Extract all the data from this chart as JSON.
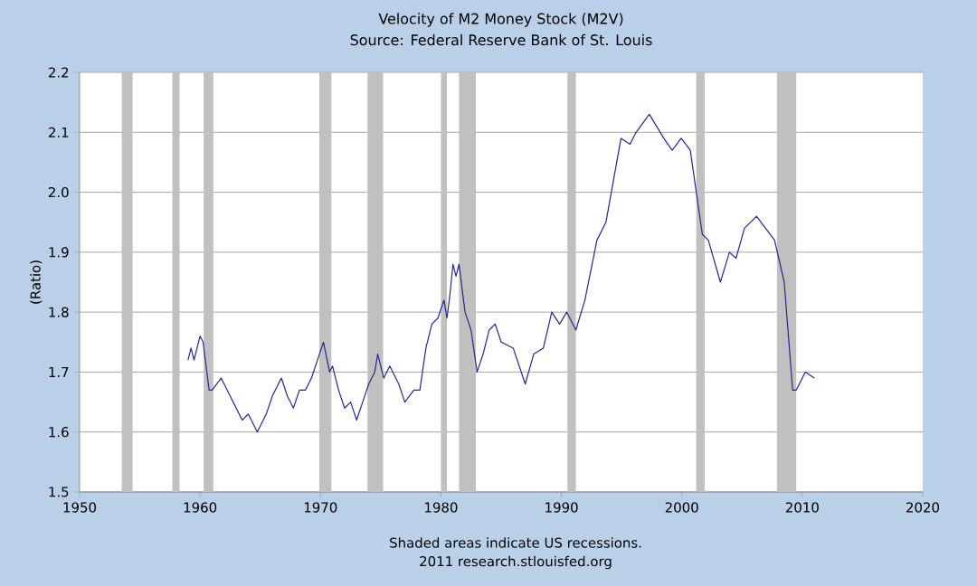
{
  "chart_data": {
    "type": "line",
    "title": "Velocity of M2 Money Stock (M2V)",
    "subtitle": "Source: Federal Reserve Bank of St. Louis",
    "ylabel": "(Ratio)",
    "annotations": [
      "Shaded areas indicate US recessions.",
      "2011 research.stlouisfed.org"
    ],
    "xlim": [
      1950,
      2020
    ],
    "xticks": [
      1950,
      1960,
      1970,
      1980,
      1990,
      2000,
      2010,
      2020
    ],
    "ylim": [
      1.5,
      2.2
    ],
    "yticks": [
      1.5,
      1.6,
      1.7,
      1.8,
      1.9,
      {
        "value": 2.0,
        "label": "2.0"
      },
      2.1,
      2.2
    ],
    "grid": "y",
    "bands": [
      {
        "axis": "x",
        "from": 1953.5,
        "to": 1954.4,
        "color": "#c0c0c0"
      },
      {
        "axis": "x",
        "from": 1957.7,
        "to": 1958.3,
        "color": "#c0c0c0"
      },
      {
        "axis": "x",
        "from": 1960.3,
        "to": 1961.1,
        "color": "#c0c0c0"
      },
      {
        "axis": "x",
        "from": 1969.9,
        "to": 1970.9,
        "color": "#c0c0c0"
      },
      {
        "axis": "x",
        "from": 1973.9,
        "to": 1975.2,
        "color": "#c0c0c0"
      },
      {
        "axis": "x",
        "from": 1980.0,
        "to": 1980.5,
        "color": "#c0c0c0"
      },
      {
        "axis": "x",
        "from": 1981.5,
        "to": 1982.9,
        "color": "#c0c0c0"
      },
      {
        "axis": "x",
        "from": 1990.5,
        "to": 1991.2,
        "color": "#c0c0c0"
      },
      {
        "axis": "x",
        "from": 2001.2,
        "to": 2001.9,
        "color": "#c0c0c0"
      },
      {
        "axis": "x",
        "from": 2007.9,
        "to": 2009.5,
        "color": "#c0c0c0"
      }
    ],
    "series": [
      {
        "color": "#1f2a8c",
        "x": [
          1959.0,
          1959.25,
          1959.5,
          1960.0,
          1960.25,
          1960.75,
          1961.0,
          1961.75,
          1962.5,
          1963.0,
          1963.5,
          1964.0,
          1964.5,
          1964.75,
          1965.5,
          1966.0,
          1966.75,
          1967.25,
          1967.75,
          1968.25,
          1968.75,
          1969.25,
          1969.75,
          1970.25,
          1970.75,
          1971.0,
          1971.5,
          1972.0,
          1972.5,
          1973.0,
          1973.5,
          1974.0,
          1974.5,
          1974.75,
          1975.25,
          1975.75,
          1976.5,
          1977.0,
          1977.75,
          1978.25,
          1978.75,
          1979.25,
          1979.75,
          1980.25,
          1980.5,
          1980.75,
          1981.0,
          1981.25,
          1981.5,
          1982.0,
          1982.5,
          1983.0,
          1983.5,
          1984.0,
          1984.5,
          1985.0,
          1986.0,
          1987.0,
          1987.7,
          1988.5,
          1989.2,
          1989.85,
          1990.45,
          1991.2,
          1991.95,
          1992.95,
          1993.7,
          1994.95,
          1995.7,
          1996.2,
          1997.3,
          1998.5,
          1999.2,
          1999.95,
          2000.7,
          2001.7,
          2002.2,
          2003.2,
          2003.95,
          2004.5,
          2005.2,
          2006.2,
          2006.95,
          2007.7,
          2008.5,
          2009.2,
          2009.5,
          2010.25,
          2011.0
        ],
        "values": [
          1.72,
          1.74,
          1.72,
          1.76,
          1.75,
          1.67,
          1.67,
          1.69,
          1.66,
          1.64,
          1.62,
          1.63,
          1.61,
          1.6,
          1.63,
          1.66,
          1.69,
          1.66,
          1.64,
          1.67,
          1.67,
          1.69,
          1.72,
          1.75,
          1.7,
          1.71,
          1.67,
          1.64,
          1.65,
          1.62,
          1.65,
          1.68,
          1.7,
          1.73,
          1.69,
          1.71,
          1.68,
          1.65,
          1.67,
          1.67,
          1.74,
          1.78,
          1.79,
          1.82,
          1.79,
          1.83,
          1.88,
          1.86,
          1.88,
          1.8,
          1.77,
          1.7,
          1.73,
          1.77,
          1.78,
          1.75,
          1.74,
          1.68,
          1.73,
          1.74,
          1.8,
          1.78,
          1.8,
          1.77,
          1.82,
          1.92,
          1.95,
          2.09,
          2.08,
          2.1,
          2.13,
          2.09,
          2.07,
          2.09,
          2.07,
          1.93,
          1.92,
          1.85,
          1.9,
          1.89,
          1.94,
          1.96,
          1.94,
          1.92,
          1.85,
          1.67,
          1.67,
          1.7,
          1.69
        ]
      }
    ]
  }
}
